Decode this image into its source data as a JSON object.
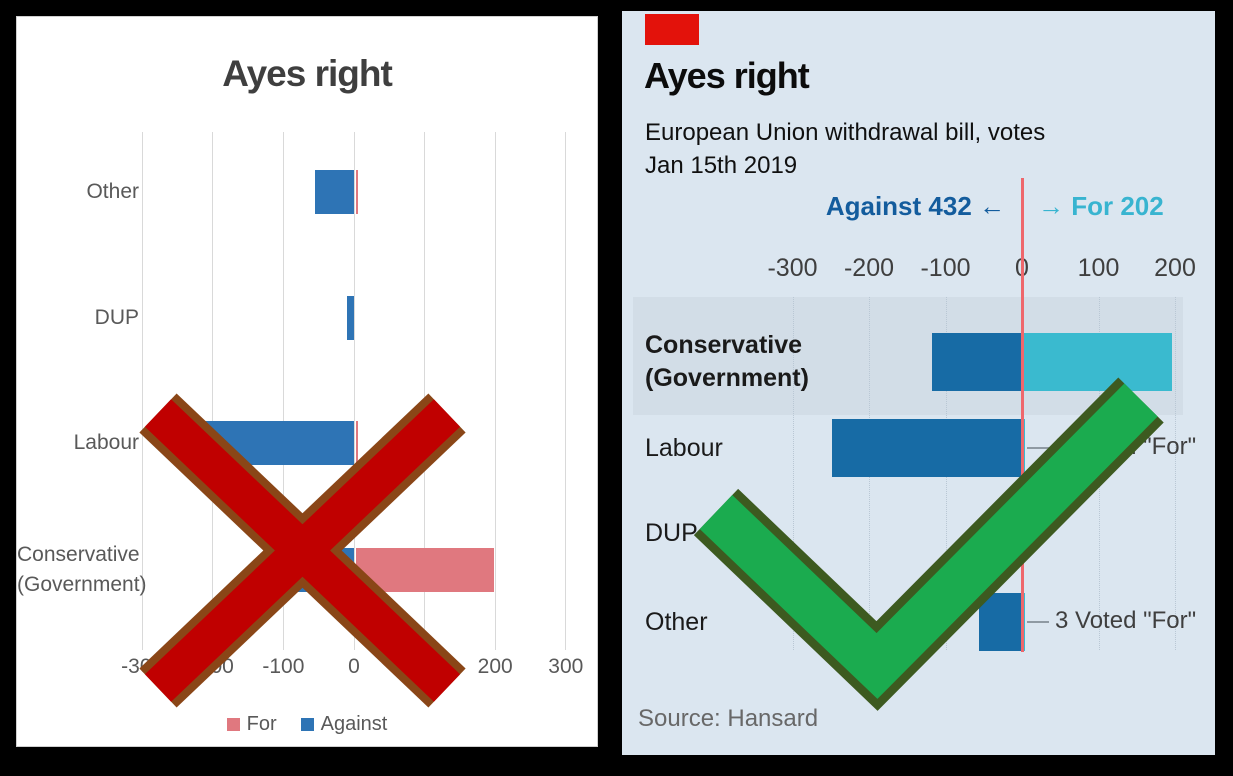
{
  "left_chart": {
    "title": "Ayes right",
    "x_tick_values": [
      -300,
      -200,
      -100,
      0,
      100,
      200,
      300
    ],
    "categories": [
      {
        "lines": [
          "Other"
        ]
      },
      {
        "lines": [
          "DUP"
        ]
      },
      {
        "lines": [
          "Labour"
        ]
      },
      {
        "lines": [
          "Conservative",
          "(Government)"
        ]
      }
    ],
    "legend": [
      {
        "label": "For",
        "color": "#E0787F"
      },
      {
        "label": "Against",
        "color": "#2E74B5"
      }
    ],
    "text_color": "#595959",
    "gridline_color": "#D9D9D9"
  },
  "right_chart": {
    "brand_color": "#E3120B",
    "title": "Ayes right",
    "subtitle": "European Union withdrawal bill, votes",
    "date": "Jan 15th 2019",
    "direction_left": "Against 432 ←",
    "direction_right": "→ For 202",
    "direction_left_color": "#135C9D",
    "direction_right_color": "#38B4D0",
    "x_tick_values": [
      -300,
      -200,
      -100,
      0,
      100,
      200
    ],
    "categories": [
      {
        "lines": [
          "Conservative",
          "(Government)"
        ],
        "bold": true
      },
      {
        "lines": [
          "Labour"
        ]
      },
      {
        "lines": [
          "DUP"
        ]
      },
      {
        "lines": [
          "Other"
        ]
      }
    ],
    "band_color": "#D2DDE7",
    "background_color": "#DBE6F0",
    "source": "Source: Hansard"
  },
  "verdict_overlays": {
    "left_panel_mark": "rejected-cross",
    "right_panel_mark": "approved-check",
    "cross_fill": "#C00000",
    "cross_border": "#8A4617",
    "check_fill": "#1BAB4F",
    "check_border": "#3D5A20"
  },
  "chart_data": [
    {
      "panel": "left-excel-default-version (crossed out)",
      "type": "bar",
      "orientation": "horizontal",
      "title": "Ayes right",
      "categories": [
        "Other",
        "DUP",
        "Labour",
        "Conservative (Government)"
      ],
      "series": [
        {
          "name": "For",
          "color": "#E0787F",
          "values": [
            3,
            0,
            3,
            196
          ]
        },
        {
          "name": "Against",
          "color": "#2E74B5",
          "values": [
            -56,
            -10,
            -248,
            -118
          ]
        }
      ],
      "xlim": [
        -300,
        300
      ],
      "x_ticks": [
        -300,
        -200,
        -100,
        0,
        100,
        200,
        300
      ],
      "grid": "vertical-on",
      "legend_position": "bottom",
      "note": "Against votes plotted as negative values"
    },
    {
      "panel": "right-economist-style-version (check mark)",
      "type": "bar",
      "orientation": "horizontal",
      "title": "Ayes right",
      "subtitle": "European Union withdrawal bill, votes",
      "date": "Jan 15th 2019",
      "categories": [
        "Conservative (Government)",
        "Labour",
        "DUP",
        "Other"
      ],
      "series": [
        {
          "name": "For",
          "color": "#3ABACF",
          "values": [
            196,
            3,
            0,
            3
          ],
          "total_label": "For 202"
        },
        {
          "name": "Against",
          "color": "#176BA5",
          "values": [
            -118,
            -248,
            -10,
            -56
          ],
          "total_label": "Against 432"
        }
      ],
      "xlim": [
        -350,
        230
      ],
      "x_ticks": [
        -300,
        -200,
        -100,
        0,
        100,
        200
      ],
      "grid": "vertical-dotted",
      "highlight_band_category": "Conservative (Government)",
      "zero_line_color": "#EE676C",
      "annotations": [
        {
          "category": "Labour",
          "row_index": 1,
          "text": "3 Voted \"For\""
        },
        {
          "category": "Other",
          "row_index": 3,
          "text": "3 Voted \"For\""
        }
      ],
      "source": "Source: Hansard"
    }
  ]
}
